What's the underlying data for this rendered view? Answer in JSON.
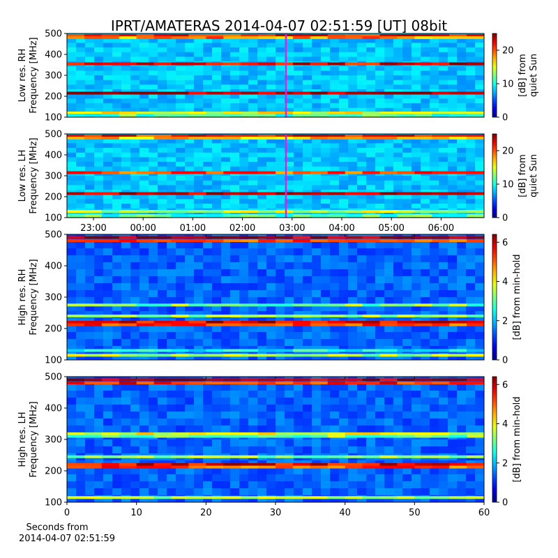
{
  "title": "IPRT/AMATERAS 2014-04-07 02:51:59 [UT]   08bit",
  "colors": {
    "cursor": "#e020e0"
  },
  "chart_data": [
    {
      "id": "lowrh",
      "type": "heatmap",
      "ylabel_lines": [
        "Low res. RH",
        "Frequency [MHz]"
      ],
      "ylim": [
        100,
        500
      ],
      "yticks": [
        "100",
        "200",
        "300",
        "400",
        "500"
      ],
      "cbar_label_lines": [
        "[dB] from",
        "quiet Sun"
      ],
      "cbar_ticks": [
        "0",
        "10",
        "20"
      ],
      "cbar_range": [
        0,
        25
      ],
      "cursor_time": "02:51:59",
      "bands_mhz": [
        {
          "f": 490,
          "v": 0.85
        },
        {
          "f": 480,
          "v": 0.75
        },
        {
          "f": 355,
          "v": 0.9
        },
        {
          "f": 215,
          "v": 0.95
        },
        {
          "f": 120,
          "v": 0.6
        },
        {
          "f": 110,
          "v": 0.45
        }
      ]
    },
    {
      "id": "lowlh",
      "type": "heatmap",
      "ylabel_lines": [
        "Low res. LH",
        "Frequency [MHz]"
      ],
      "ylim": [
        100,
        500
      ],
      "yticks": [
        "100",
        "200",
        "300",
        "400",
        "500"
      ],
      "cbar_label_lines": [
        "[dB] from",
        "quiet Sun"
      ],
      "cbar_ticks": [
        "0",
        "10",
        "20"
      ],
      "cbar_range": [
        0,
        25
      ],
      "cursor_time": "02:51:59",
      "xticks": [
        "23:00",
        "00:00",
        "01:00",
        "02:00",
        "03:00",
        "04:00",
        "05:00",
        "06:00"
      ],
      "bands_mhz": [
        {
          "f": 490,
          "v": 0.85
        },
        {
          "f": 480,
          "v": 0.7
        },
        {
          "f": 315,
          "v": 0.8
        },
        {
          "f": 215,
          "v": 0.95
        },
        {
          "f": 130,
          "v": 0.55
        },
        {
          "f": 110,
          "v": 0.45
        }
      ]
    },
    {
      "id": "highrh",
      "type": "heatmap",
      "ylabel_lines": [
        "High res. RH",
        "Frequency [MHz]"
      ],
      "ylim": [
        100,
        500
      ],
      "yticks": [
        "100",
        "200",
        "300",
        "400",
        "500"
      ],
      "cbar_label_lines": [
        "[dB] from min-hold"
      ],
      "cbar_ticks": [
        "0",
        "2",
        "4",
        "6"
      ],
      "cbar_range": [
        0,
        6.4
      ],
      "bands_mhz": [
        {
          "f": 490,
          "v": 0.95
        },
        {
          "f": 480,
          "v": 0.8
        },
        {
          "f": 275,
          "v": 0.5
        },
        {
          "f": 240,
          "v": 0.55
        },
        {
          "f": 220,
          "v": 0.9
        },
        {
          "f": 212,
          "v": 0.8
        },
        {
          "f": 130,
          "v": 0.4
        },
        {
          "f": 115,
          "v": 0.55
        }
      ]
    },
    {
      "id": "highlh",
      "type": "heatmap",
      "ylabel_lines": [
        "High res. LH",
        "Frequency [MHz]"
      ],
      "ylim": [
        100,
        500
      ],
      "yticks": [
        "100",
        "200",
        "300",
        "400",
        "500"
      ],
      "cbar_label_lines": [
        "[dB] from min-hold"
      ],
      "cbar_ticks": [
        "0",
        "2",
        "4",
        "6"
      ],
      "cbar_range": [
        0,
        6.4
      ],
      "xlim": [
        0,
        60
      ],
      "xticks": [
        "0",
        "10",
        "20",
        "30",
        "40",
        "50",
        "60"
      ],
      "xlabel_lines": [
        "Seconds from",
        "2014-04-07 02:51:59"
      ],
      "bands_mhz": [
        {
          "f": 490,
          "v": 0.95
        },
        {
          "f": 480,
          "v": 0.85
        },
        {
          "f": 318,
          "v": 0.6
        },
        {
          "f": 310,
          "v": 0.5
        },
        {
          "f": 245,
          "v": 0.5
        },
        {
          "f": 220,
          "v": 0.9
        },
        {
          "f": 212,
          "v": 0.8
        },
        {
          "f": 115,
          "v": 0.55
        }
      ]
    }
  ]
}
